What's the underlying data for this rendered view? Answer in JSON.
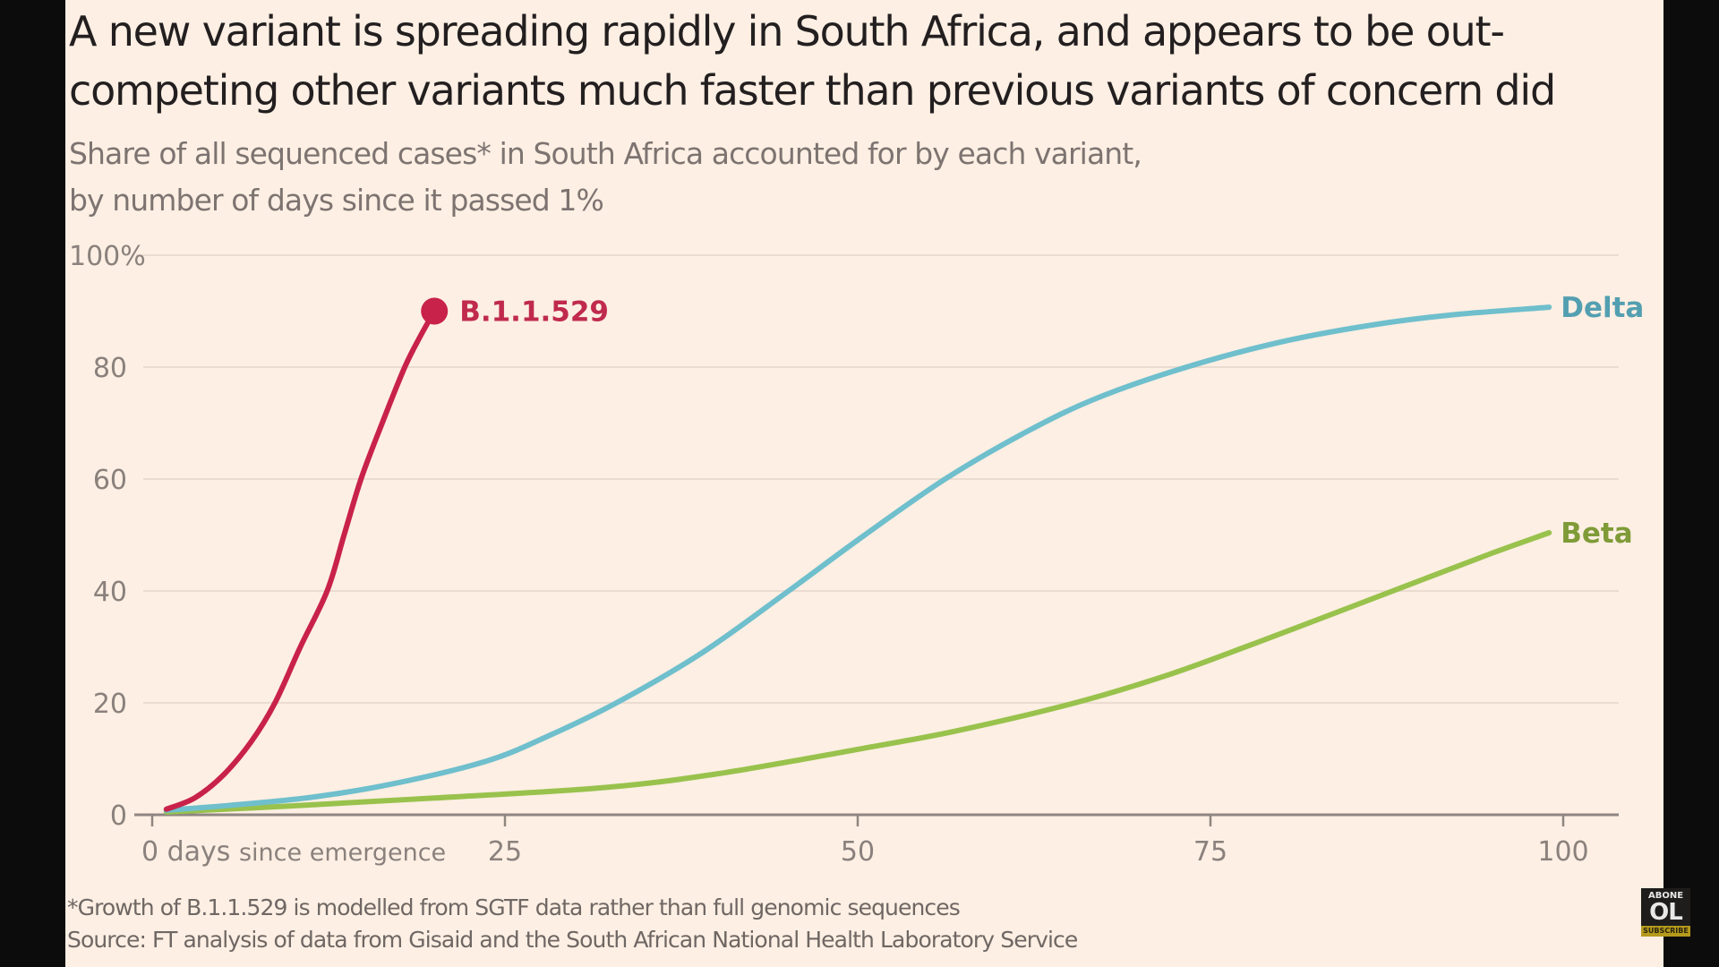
{
  "header": {
    "title_line1": "A new variant is spreading rapidly in South Africa, and appears to be out-",
    "title_line2": "competing other variants much faster than previous variants of concern did",
    "subtitle_line1": "Share of all sequenced cases* in South Africa accounted for by each variant,",
    "subtitle_line2": "by number of days since it passed 1%"
  },
  "footer": {
    "note": "*Growth of B.1.1.529 is modelled from SGTF data rather than full genomic sequences",
    "source": "Source: FT analysis of data from Gisaid and the South African National Health Laboratory Service"
  },
  "badge": {
    "top": "ABONE",
    "middle": "OL",
    "bottom": "SUBSCRIBE"
  },
  "colors": {
    "background": "#fdefe3",
    "b11529": "#c8224a",
    "delta": "#6fbfcd",
    "beta": "#99c24d",
    "b11529_label": "#c02a4c",
    "delta_label": "#539fb1",
    "beta_label": "#7f9b38",
    "grid": "#eadcd0",
    "axis": "#8f8681"
  },
  "chart_data": {
    "type": "line",
    "title": "A new variant is spreading rapidly in South Africa, and appears to be out-competing other variants much faster than previous variants of concern did",
    "subtitle": "Share of all sequenced cases* in South Africa accounted for by each variant, by number of days since it passed 1%",
    "xlabel": "days since emergence",
    "ylabel": "",
    "xlim": [
      0,
      100
    ],
    "ylim": [
      0,
      100
    ],
    "x_ticks": [
      0,
      25,
      50,
      75,
      100
    ],
    "x_tick_labels": [
      "0",
      "25",
      "50",
      "75",
      "100"
    ],
    "x_first_tick_suffix_bold": "days",
    "x_first_tick_suffix_light": "since emergence",
    "y_ticks": [
      0,
      20,
      40,
      60,
      80,
      100
    ],
    "y_tick_labels": [
      "0",
      "20",
      "40",
      "60",
      "80",
      "100%"
    ],
    "grid": true,
    "legend": "direct-labels-at-line-ends",
    "series": [
      {
        "name": "B.1.1.529",
        "color_key": "b11529",
        "end_marker": "dot",
        "x": [
          1,
          3,
          5,
          7,
          8.7,
          10.5,
          12.4,
          13.6,
          14.8,
          16.3,
          17.9,
          19,
          20
        ],
        "y": [
          1,
          3,
          7,
          13,
          20,
          30,
          40,
          50,
          60,
          70,
          80,
          85.5,
          90
        ]
      },
      {
        "name": "Delta",
        "color_key": "delta",
        "end_marker": "none",
        "x": [
          1,
          6,
          11.5,
          17,
          23.7,
          28,
          32.9,
          39,
          45.1,
          50.5,
          56.2,
          62,
          67,
          73.3,
          80,
          86.4,
          92,
          99
        ],
        "y": [
          0.8,
          1.8,
          3.2,
          5.5,
          9.6,
          14,
          20,
          29,
          40,
          50,
          60,
          68.5,
          74.5,
          80,
          84.5,
          87.5,
          89.3,
          90.7
        ]
      },
      {
        "name": "Beta",
        "color_key": "beta",
        "end_marker": "none",
        "x": [
          1,
          10,
          20,
          31.7,
          40,
          50,
          57,
          65.4,
          72,
          78,
          84.6,
          90,
          95,
          99
        ],
        "y": [
          0.5,
          1.6,
          3,
          4.8,
          7.3,
          11.7,
          15,
          20,
          25,
          30.5,
          36.8,
          42,
          46.8,
          50.4
        ]
      }
    ]
  }
}
